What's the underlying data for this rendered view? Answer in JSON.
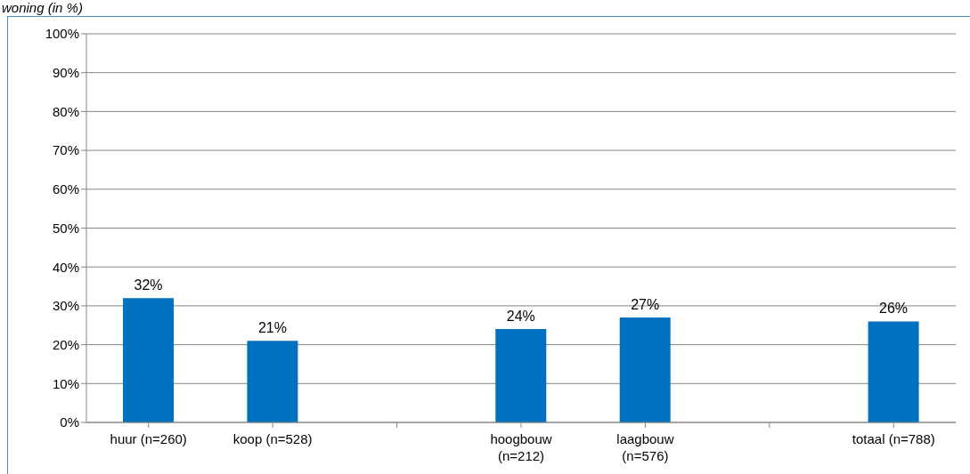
{
  "chart_data": {
    "type": "bar",
    "title": "woning (in %)",
    "categories": [
      "huur (n=260)",
      "koop (n=528)",
      null,
      "hoogbouw (n=212)",
      "laagbouw (n=576)",
      null,
      "totaal (n=788)"
    ],
    "values": [
      32,
      21,
      null,
      24,
      27,
      null,
      26
    ],
    "color": "#0070c0",
    "ylim": [
      0,
      100
    ],
    "yticks": [
      {
        "value": 0,
        "label": "0%"
      },
      {
        "value": 10,
        "label": "10%"
      },
      {
        "value": 20,
        "label": "20%"
      },
      {
        "value": 30,
        "label": "30%"
      },
      {
        "value": 40,
        "label": "40%"
      },
      {
        "value": 50,
        "label": "50%"
      },
      {
        "value": 60,
        "label": "60%"
      },
      {
        "value": 70,
        "label": "70%"
      },
      {
        "value": 80,
        "label": "80%"
      },
      {
        "value": 90,
        "label": "90%"
      },
      {
        "value": 100,
        "label": "100%"
      }
    ],
    "value_labels": [
      "32%",
      "21%",
      null,
      "24%",
      "27%",
      null,
      "26%"
    ],
    "grid": "y"
  }
}
